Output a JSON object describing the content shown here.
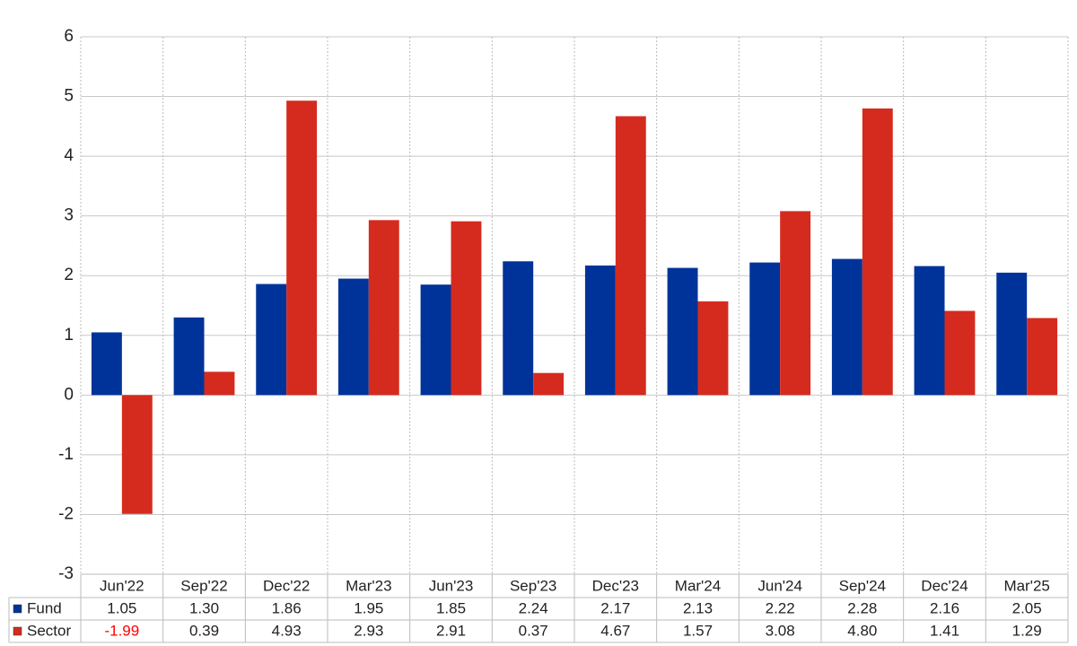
{
  "chart_data": {
    "type": "bar",
    "categories": [
      "Jun'22",
      "Sep'22",
      "Dec'22",
      "Mar'23",
      "Jun'23",
      "Sep'23",
      "Dec'23",
      "Mar'24",
      "Jun'24",
      "Sep'24",
      "Dec'24",
      "Mar'25"
    ],
    "series": [
      {
        "name": "Fund",
        "color": "#003399",
        "values": [
          1.05,
          1.3,
          1.86,
          1.95,
          1.85,
          2.24,
          2.17,
          2.13,
          2.22,
          2.28,
          2.16,
          2.05
        ],
        "value_labels": [
          "1.05",
          "1.30",
          "1.86",
          "1.95",
          "1.85",
          "2.24",
          "2.17",
          "2.13",
          "2.22",
          "2.28",
          "2.16",
          "2.05"
        ]
      },
      {
        "name": "Sector",
        "color": "#d52b1e",
        "values": [
          -1.99,
          0.39,
          4.93,
          2.93,
          2.91,
          0.37,
          4.67,
          1.57,
          3.08,
          4.8,
          1.41,
          1.29
        ],
        "value_labels": [
          "-1.99",
          "0.39",
          "4.93",
          "2.93",
          "2.91",
          "0.37",
          "4.67",
          "1.57",
          "3.08",
          "4.80",
          "1.41",
          "1.29"
        ]
      }
    ],
    "ylim": [
      -3,
      6
    ],
    "yticks": [
      -3,
      -2,
      -1,
      0,
      1,
      2,
      3,
      4,
      5,
      6
    ],
    "grid": true
  }
}
